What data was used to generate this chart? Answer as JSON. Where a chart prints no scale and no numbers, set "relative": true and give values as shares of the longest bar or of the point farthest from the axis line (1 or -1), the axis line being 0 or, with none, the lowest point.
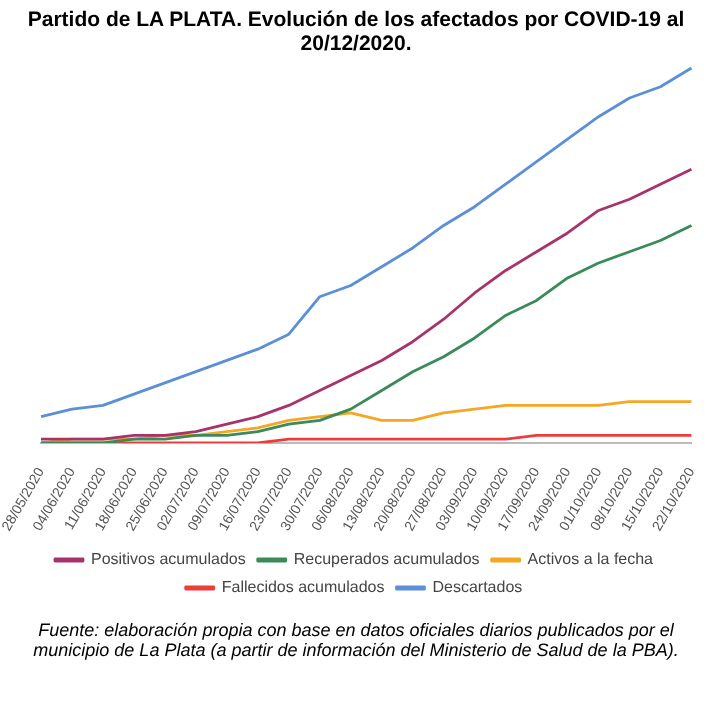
{
  "chart_data": {
    "type": "line",
    "title": "Partido de LA PLATA. Evolución de los afectados por COVID-19 al 20/12/2020.",
    "relative": true,
    "legend": "bottom",
    "grid": false,
    "marker": "none",
    "line_style": "solid",
    "categories": [
      "28/05/2020",
      "04/06/2020",
      "11/06/2020",
      "18/06/2020",
      "25/06/2020",
      "02/07/2020",
      "09/07/2020",
      "16/07/2020",
      "23/07/2020",
      "30/07/2020",
      "06/08/2020",
      "13/08/2020",
      "20/08/2020",
      "27/08/2020",
      "03/09/2020",
      "10/09/2020",
      "17/09/2020",
      "24/09/2020",
      "01/10/2020",
      "08/10/2020",
      "15/10/2020",
      "22/10/2020"
    ],
    "series": [
      {
        "name": "Positivos acumulados",
        "color": "#a8336a",
        "values": [
          0.01,
          0.01,
          0.01,
          0.02,
          0.02,
          0.03,
          0.05,
          0.07,
          0.1,
          0.14,
          0.18,
          0.22,
          0.27,
          0.33,
          0.4,
          0.46,
          0.51,
          0.56,
          0.62,
          0.65,
          0.69,
          0.73
        ]
      },
      {
        "name": "Recuperados acumulados",
        "color": "#3a8a5a",
        "values": [
          0,
          0,
          0,
          0.01,
          0.01,
          0.02,
          0.02,
          0.03,
          0.05,
          0.06,
          0.09,
          0.14,
          0.19,
          0.23,
          0.28,
          0.34,
          0.38,
          0.44,
          0.48,
          0.51,
          0.54,
          0.58
        ]
      },
      {
        "name": "Activos a la fecha",
        "color": "#f5a623",
        "values": [
          0,
          0.01,
          0.01,
          0.01,
          0.02,
          0.02,
          0.03,
          0.04,
          0.06,
          0.07,
          0.08,
          0.06,
          0.06,
          0.08,
          0.09,
          0.1,
          0.1,
          0.1,
          0.1,
          0.11,
          0.11,
          0.11
        ]
      },
      {
        "name": "Fallecidos acumulados",
        "color": "#ee3b3b",
        "values": [
          0,
          0,
          0,
          0,
          0,
          0,
          0,
          0,
          0.01,
          0.01,
          0.01,
          0.01,
          0.01,
          0.01,
          0.01,
          0.01,
          0.02,
          0.02,
          0.02,
          0.02,
          0.02,
          0.02
        ]
      },
      {
        "name": "Descartados",
        "color": "#5b8fd6",
        "values": [
          0.07,
          0.09,
          0.1,
          0.13,
          0.16,
          0.19,
          0.22,
          0.25,
          0.29,
          0.39,
          0.42,
          0.47,
          0.52,
          0.58,
          0.63,
          0.69,
          0.75,
          0.81,
          0.87,
          0.92,
          0.95,
          1
        ]
      }
    ],
    "annotations": [
      "Fuente: elaboración propia con base en datos oficiales diarios publicados por el municipio de La Plata (a partir de información del Ministerio de Salud de la PBA)."
    ]
  }
}
